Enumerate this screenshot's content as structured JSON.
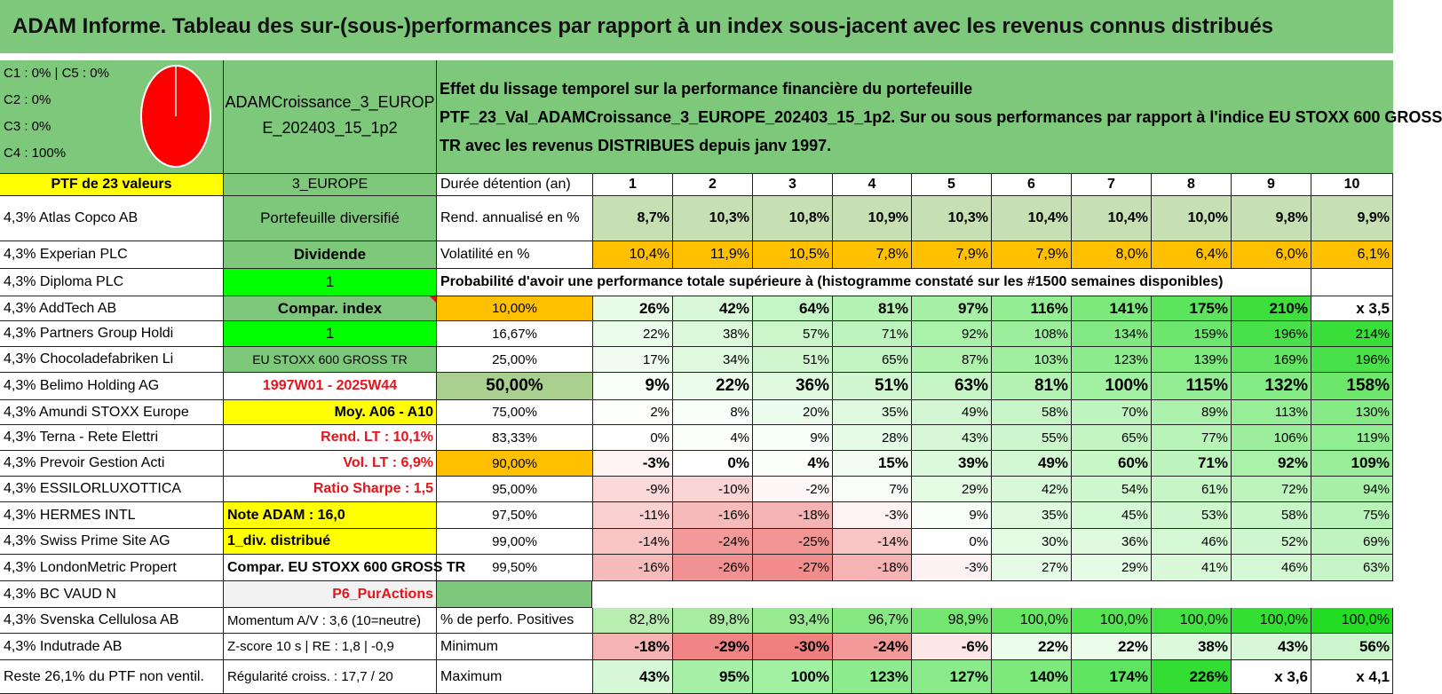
{
  "title": "ADAM Informe. Tableau des sur-(sous-)performances par rapport à un index sous-jacent avec les revenus connus distribués",
  "classes": [
    "C1 : 0% | C5 : 0%",
    "C2 : 0%",
    "C3 : 0%",
    "C4 : 100%"
  ],
  "pie": {
    "color": "#ff0000",
    "slices": [
      {
        "label": "C4",
        "value": 100
      }
    ]
  },
  "portfolio_name": [
    "ADAMCroissance_3_EUROP",
    "E_202403_15_1p2"
  ],
  "effet": [
    "Effet du lissage temporel sur la performance financière du portefeuille",
    "PTF_23_Val_ADAMCroissance_3_EUROPE_202403_15_1p2. Sur ou sous performances par rapport à l'indice EU STOXX 600 GROSS",
    "TR avec les revenus DISTRIBUES depuis janv 1997."
  ],
  "ptf_label": "PTF de 23 valeurs",
  "zone_label": "3_EUROPE",
  "holdings": [
    "4,3% Atlas Copco AB",
    "4,3% Experian PLC",
    "4,3% Diploma PLC",
    "4,3% AddTech AB",
    "4,3% Partners Group Holdi",
    "4,3% Chocoladefabriken Li",
    "4,3% Belimo Holding AG",
    "4,3% Amundi STOXX Europe",
    "4,3% Terna - Rete Elettri",
    "4,3% Prevoir Gestion Acti",
    "4,3% ESSILORLUXOTTICA",
    "4,3% HERMES INTL",
    "4,3% Swiss Prime Site AG",
    "4,3% LondonMetric Propert",
    "4,3% BC VAUD N",
    "4,3% Svenska Cellulosa AB",
    "4,3% Indutrade AB",
    "Reste 26,1% du PTF non ventil."
  ],
  "info": [
    "Portefeuille diversifié",
    "Dividende",
    "1",
    "Compar. index",
    "1",
    "EU STOXX 600 GROSS TR",
    "1997W01 - 2025W44",
    "Moy. A06 - A10",
    "Rend. LT : 10,1%",
    "Vol. LT : 6,9%",
    "Ratio Sharpe : 1,5",
    "Note ADAM : 16,0",
    "1_div. distribué",
    "Compar. EU STOXX 600 GROSS TR",
    "P6_PurActions",
    "Momentum A/V : 3,6 (10=neutre)",
    "Z-score 10 s | RE : 1,8 | -0,9",
    "Régularité croiss. : 17,7 / 20"
  ],
  "duree_label": "Durée détention (an)",
  "years": [
    "1",
    "2",
    "3",
    "4",
    "5",
    "6",
    "7",
    "8",
    "9",
    "10"
  ],
  "rend_label": "Rend. annualisé en %",
  "rend_values": [
    "8,7%",
    "10,3%",
    "10,8%",
    "10,9%",
    "10,3%",
    "10,4%",
    "10,4%",
    "10,0%",
    "9,8%",
    "9,9%"
  ],
  "vol_label": "Volatilité en %",
  "vol_values": [
    "10,4%",
    "11,9%",
    "10,5%",
    "7,8%",
    "7,9%",
    "7,9%",
    "8,0%",
    "6,4%",
    "6,0%",
    "6,1%"
  ],
  "prob_label": "Probabilité d'avoir une performance totale supérieure à (histogramme constaté sur les #1500 semaines disponibles)",
  "prob_rows": [
    {
      "p": "10,00%",
      "v": [
        "26%",
        "42%",
        "64%",
        "81%",
        "97%",
        "116%",
        "141%",
        "175%",
        "210%",
        "x 3,5"
      ]
    },
    {
      "p": "16,67%",
      "v": [
        "22%",
        "38%",
        "57%",
        "71%",
        "92%",
        "108%",
        "134%",
        "159%",
        "196%",
        "214%"
      ]
    },
    {
      "p": "25,00%",
      "v": [
        "17%",
        "34%",
        "51%",
        "65%",
        "87%",
        "103%",
        "123%",
        "139%",
        "169%",
        "196%"
      ]
    },
    {
      "p": "50,00%",
      "v": [
        "9%",
        "22%",
        "36%",
        "51%",
        "63%",
        "81%",
        "100%",
        "115%",
        "132%",
        "158%"
      ]
    },
    {
      "p": "75,00%",
      "v": [
        "2%",
        "8%",
        "20%",
        "35%",
        "49%",
        "58%",
        "70%",
        "89%",
        "113%",
        "130%"
      ]
    },
    {
      "p": "83,33%",
      "v": [
        "0%",
        "4%",
        "9%",
        "28%",
        "43%",
        "55%",
        "65%",
        "77%",
        "106%",
        "119%"
      ]
    },
    {
      "p": "90,00%",
      "v": [
        "-3%",
        "0%",
        "4%",
        "15%",
        "39%",
        "49%",
        "60%",
        "71%",
        "92%",
        "109%"
      ]
    },
    {
      "p": "95,00%",
      "v": [
        "-9%",
        "-10%",
        "-2%",
        "7%",
        "29%",
        "42%",
        "54%",
        "61%",
        "72%",
        "94%"
      ]
    },
    {
      "p": "97,50%",
      "v": [
        "-11%",
        "-16%",
        "-18%",
        "-3%",
        "9%",
        "35%",
        "45%",
        "53%",
        "58%",
        "75%"
      ]
    },
    {
      "p": "99,00%",
      "v": [
        "-14%",
        "-24%",
        "-25%",
        "-14%",
        "0%",
        "30%",
        "36%",
        "46%",
        "52%",
        "69%"
      ]
    },
    {
      "p": "99,50%",
      "v": [
        "-16%",
        "-26%",
        "-27%",
        "-18%",
        "-3%",
        "27%",
        "29%",
        "41%",
        "46%",
        "63%"
      ]
    }
  ],
  "pos_label": "% de perfo. Positives",
  "pos_values": [
    "82,8%",
    "89,8%",
    "93,4%",
    "96,7%",
    "98,9%",
    "100,0%",
    "100,0%",
    "100,0%",
    "100,0%",
    "100,0%"
  ],
  "min_label": "Minimum",
  "min_values": [
    "-18%",
    "-29%",
    "-30%",
    "-24%",
    "-6%",
    "22%",
    "22%",
    "38%",
    "43%",
    "56%"
  ],
  "max_label": "Maximum",
  "max_values": [
    "43%",
    "95%",
    "100%",
    "123%",
    "127%",
    "140%",
    "174%",
    "226%",
    "x 3,6",
    "x 4,1"
  ],
  "colors": {
    "header_green": "#7ec87c",
    "yellow": "#ffff00",
    "bright_green": "#00ff00",
    "orange": "#ffc000",
    "light_gray": "#f2f2f2",
    "pale_green": "#c6e0b4",
    "red_text": "#e4141b"
  }
}
